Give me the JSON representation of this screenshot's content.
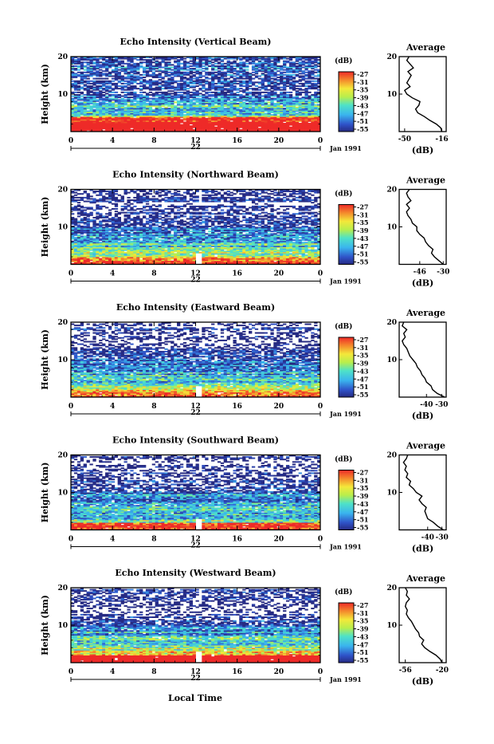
{
  "figure": {
    "xlabel_bottom": "Local Time",
    "date_month_year": "Jan 1991",
    "day_label": "22",
    "ylabel": "Height (km)",
    "colorbar_label": "(dB)",
    "avg_title": "Average",
    "avg_xlabel": "(dB)"
  },
  "chart_data": [
    {
      "type": "heatmap",
      "title": "Echo Intensity (Vertical Beam)",
      "xlim": [
        0,
        24
      ],
      "ylim": [
        0,
        20
      ],
      "xticks": [
        "0",
        "4",
        "8",
        "12",
        "16",
        "20",
        "0"
      ],
      "yticks": [
        "10",
        "20"
      ],
      "colorbar_ticks": [
        "-27",
        "-31",
        "-35",
        "-39",
        "-43",
        "-47",
        "-51",
        "-55"
      ],
      "colorbar_range": [
        -55,
        -27
      ],
      "profile": {
        "title": "Average",
        "xticks": [
          "-50",
          "-16"
        ],
        "xlim": [
          -55,
          -12
        ],
        "height_km": [
          0,
          1,
          2,
          3,
          4,
          5,
          6,
          7,
          8,
          9,
          10,
          11,
          12,
          13,
          14,
          15,
          16,
          17,
          18,
          19,
          20
        ],
        "db": [
          -16,
          -17,
          -21,
          -27,
          -32,
          -38,
          -40,
          -37,
          -36,
          -43,
          -48,
          -50,
          -45,
          -48,
          -46,
          -44,
          -47,
          -42,
          -45,
          -48,
          -46
        ]
      }
    },
    {
      "type": "heatmap",
      "title": "Echo Intensity (Northward Beam)",
      "xlim": [
        0,
        24
      ],
      "ylim": [
        0,
        20
      ],
      "xticks": [
        "0",
        "4",
        "8",
        "12",
        "16",
        "20",
        "0"
      ],
      "yticks": [
        "10",
        "20"
      ],
      "colorbar_ticks": [
        "-27",
        "-31",
        "-35",
        "-39",
        "-43",
        "-47",
        "-51",
        "-55"
      ],
      "colorbar_range": [
        -55,
        -27
      ],
      "profile": {
        "title": "Average",
        "xticks": [
          "-46",
          "-30"
        ],
        "xlim": [
          -60,
          -28
        ],
        "height_km": [
          0,
          1,
          2,
          3,
          4,
          5,
          6,
          7,
          8,
          9,
          10,
          11,
          12,
          13,
          14,
          15,
          16,
          17,
          18,
          19,
          20
        ],
        "db": [
          -30,
          -33,
          -36,
          -38,
          -37,
          -40,
          -42,
          -43,
          -46,
          -48,
          -48,
          -51,
          -52,
          -54,
          -55,
          -53,
          -55,
          -52,
          -54,
          -55,
          -53
        ]
      }
    },
    {
      "type": "heatmap",
      "title": "Echo Intensity (Eastward Beam)",
      "xlim": [
        0,
        24
      ],
      "ylim": [
        0,
        20
      ],
      "xticks": [
        "0",
        "4",
        "8",
        "12",
        "16",
        "20",
        "0"
      ],
      "yticks": [
        "10",
        "20"
      ],
      "colorbar_ticks": [
        "-27",
        "-31",
        "-35",
        "-39",
        "-43",
        "-47",
        "-51",
        "-55"
      ],
      "colorbar_range": [
        -55,
        -27
      ],
      "profile": {
        "title": "Average",
        "xticks": [
          "-40",
          "-30"
        ],
        "xlim": [
          -58,
          -27
        ],
        "height_km": [
          0,
          1,
          2,
          3,
          4,
          5,
          6,
          7,
          8,
          9,
          10,
          11,
          12,
          13,
          14,
          15,
          16,
          17,
          18,
          19,
          20
        ],
        "db": [
          -28,
          -33,
          -36,
          -37,
          -40,
          -41,
          -43,
          -44,
          -46,
          -47,
          -49,
          -51,
          -52,
          -53,
          -55,
          -56,
          -54,
          -55,
          -53,
          -56,
          -55
        ]
      }
    },
    {
      "type": "heatmap",
      "title": "Echo Intensity (Southward Beam)",
      "xlim": [
        0,
        24
      ],
      "ylim": [
        0,
        20
      ],
      "xticks": [
        "0",
        "4",
        "8",
        "12",
        "16",
        "20",
        "0"
      ],
      "yticks": [
        "10",
        "20"
      ],
      "colorbar_ticks": [
        "-27",
        "-31",
        "-35",
        "-39",
        "-43",
        "-47",
        "-51",
        "-55"
      ],
      "colorbar_range": [
        -55,
        -27
      ],
      "profile": {
        "title": "Average",
        "xticks": [
          "-40",
          "-30"
        ],
        "xlim": [
          -60,
          -27
        ],
        "height_km": [
          0,
          1,
          2,
          3,
          4,
          5,
          6,
          7,
          8,
          9,
          10,
          11,
          12,
          13,
          14,
          15,
          16,
          17,
          18,
          19,
          20
        ],
        "db": [
          -29,
          -33,
          -36,
          -40,
          -41,
          -42,
          -41,
          -44,
          -46,
          -44,
          -48,
          -50,
          -53,
          -52,
          -55,
          -54,
          -56,
          -55,
          -57,
          -55,
          -54
        ]
      }
    },
    {
      "type": "heatmap",
      "title": "Echo Intensity (Westward Beam)",
      "xlim": [
        0,
        24
      ],
      "ylim": [
        0,
        20
      ],
      "xticks": [
        "0",
        "4",
        "8",
        "12",
        "16",
        "20",
        "0"
      ],
      "yticks": [
        "10",
        "20"
      ],
      "colorbar_ticks": [
        "-27",
        "-31",
        "-35",
        "-39",
        "-43",
        "-47",
        "-51",
        "-55"
      ],
      "colorbar_range": [
        -55,
        -27
      ],
      "profile": {
        "title": "Average",
        "xticks": [
          "-56",
          "-20"
        ],
        "xlim": [
          -62,
          -16
        ],
        "height_km": [
          0,
          1,
          2,
          3,
          4,
          5,
          6,
          7,
          8,
          9,
          10,
          11,
          12,
          13,
          14,
          15,
          16,
          17,
          18,
          19,
          20
        ],
        "db": [
          -20,
          -22,
          -26,
          -32,
          -37,
          -40,
          -38,
          -42,
          -43,
          -46,
          -48,
          -50,
          -53,
          -55,
          -54,
          -56,
          -55,
          -52,
          -55,
          -54,
          -56
        ]
      }
    }
  ]
}
